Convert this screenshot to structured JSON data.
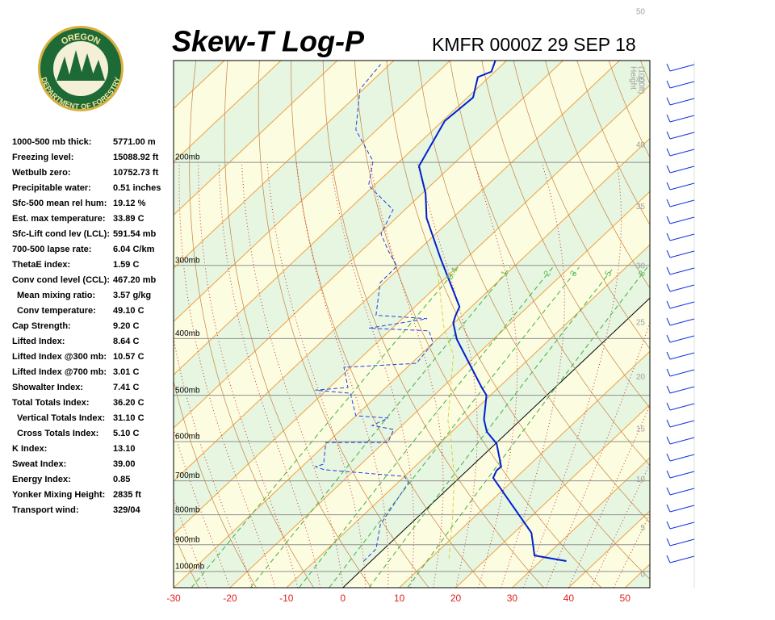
{
  "chart_data": {
    "type": "skew-t",
    "title": "Skew-T Log-P",
    "subtitle": "KMFR 0000Z 29 SEP 18",
    "logo": {
      "top": "OREGON",
      "bottom": "DEPARTMENT OF FORESTRY"
    },
    "stats": [
      {
        "label": "1000-500 mb thick:",
        "value": "5771.00 m"
      },
      {
        "label": "Freezing level:",
        "value": "15088.92 ft"
      },
      {
        "label": "Wetbulb zero:",
        "value": "10752.73 ft"
      },
      {
        "label": "Precipitable water:",
        "value": "0.51 inches"
      },
      {
        "label": "Sfc-500 mean rel hum:",
        "value": "19.12 %"
      },
      {
        "label": "Est. max temperature:",
        "value": "33.89 C"
      },
      {
        "label": "Sfc-Lift cond lev (LCL):",
        "value": "591.54 mb"
      },
      {
        "label": "700-500 lapse rate:",
        "value": "6.04 C/km"
      },
      {
        "label": "ThetaE index:",
        "value": "1.59 C"
      },
      {
        "label": "Conv cond level (CCL):",
        "value": "467.20 mb"
      },
      {
        "label": "Mean mixing ratio:",
        "value": "3.57 g/kg",
        "indent": true
      },
      {
        "label": "Conv temperature:",
        "value": "49.10 C",
        "indent": true
      },
      {
        "label": "Cap Strength:",
        "value": "9.20 C"
      },
      {
        "label": "Lifted Index:",
        "value": "8.64 C"
      },
      {
        "label": "Lifted Index @300 mb:",
        "value": "10.57 C"
      },
      {
        "label": "Lifted Index @700 mb:",
        "value": "3.01 C"
      },
      {
        "label": "Showalter Index:",
        "value": "7.41 C"
      },
      {
        "label": "Total Totals Index:",
        "value": "36.20 C"
      },
      {
        "label": "Vertical Totals Index:",
        "value": "31.10 C",
        "indent": true
      },
      {
        "label": "Cross Totals Index:",
        "value": "5.10 C",
        "indent": true
      },
      {
        "label": "K Index:",
        "value": "13.10"
      },
      {
        "label": "Sweat Index:",
        "value": "39.00"
      },
      {
        "label": "Energy Index:",
        "value": "0.85"
      },
      {
        "label": "Yonker Mixing Height:",
        "value": "2835 ft"
      },
      {
        "label": "Transport wind:",
        "value": "329/04"
      }
    ],
    "xlim": [
      -30,
      54.4
    ],
    "xticks": [
      -30,
      -20,
      -10,
      0,
      10,
      20,
      30,
      40,
      50
    ],
    "ylim": [
      1066,
      134
    ],
    "log_y": true,
    "isobars": [
      {
        "value": 200,
        "label": "200mb"
      },
      {
        "value": 300,
        "label": "300mb"
      },
      {
        "value": 400,
        "label": "400mb"
      },
      {
        "value": 500,
        "label": "500mb"
      },
      {
        "value": 600,
        "label": "600mb"
      },
      {
        "value": 700,
        "label": "700mb"
      },
      {
        "value": 800,
        "label": "800mb"
      },
      {
        "value": 900,
        "label": "900mb"
      },
      {
        "value": 1000,
        "label": "1000mb"
      }
    ],
    "height_label": [
      "Height",
      "(1000ft)"
    ],
    "height_ticks": [
      0,
      5,
      10,
      15,
      20,
      25,
      30,
      35,
      40,
      45,
      50
    ],
    "mixing_ratios": [
      {
        "value": 0.4,
        "label": "0.4"
      },
      1,
      2,
      3,
      5,
      8
    ],
    "series": [
      {
        "color": "#0020d0",
        "style": "solid",
        "pressure": [
          960,
          939,
          859,
          692,
          672,
          662,
          605,
          577,
          550,
          500,
          485,
          401,
          376,
          366,
          353,
          292,
          249,
          226,
          203,
          170,
          155,
          143,
          140,
          134
        ],
        "values": [
          34.6,
          27.9,
          23.1,
          6.0,
          5.2,
          5.3,
          0.2,
          -3.8,
          -6.6,
          -10.7,
          -13,
          -26.5,
          -30.2,
          -31.1,
          -32.1,
          -44.5,
          -54.6,
          -59.4,
          -65.7,
          -69.6,
          -69,
          -72,
          -70.6,
          -72
        ]
      },
      {
        "color": "#2040e0",
        "style": "dashed",
        "pressure": [
          960,
          915,
          832,
          756,
          705,
          688,
          670,
          662,
          656,
          602,
          602,
          572,
          563,
          547,
          542,
          496,
          490,
          485,
          448,
          441,
          407,
          388,
          384,
          370,
          365,
          321,
          301,
          283,
          265,
          241,
          219,
          199,
          176,
          150,
          136
        ],
        "values": [
          -1.3,
          -1.4,
          -5.2,
          -6.9,
          -8.1,
          -10,
          -25.5,
          -27.6,
          -26.6,
          -30.3,
          -19.3,
          -20.7,
          -25.3,
          -23.8,
          -30,
          -35.2,
          -42,
          -36.7,
          -41.2,
          -29.1,
          -30,
          -33,
          -44.1,
          -35.6,
          -45.3,
          -50.7,
          -50.8,
          -55.3,
          -59.7,
          -62.1,
          -71,
          -74.8,
          -83.7,
          -90.6,
          -91.6
        ]
      },
      {
        "color": "#e0d040",
        "style": "dashed",
        "pressure": [
          950,
          806,
          688,
          596,
          552,
          427,
          382,
          301
        ],
        "values": [
          13.3,
          6.1,
          -1.2,
          -8.6,
          -12.8,
          -24.1,
          -31.1,
          -43.7
        ]
      }
    ]
  }
}
